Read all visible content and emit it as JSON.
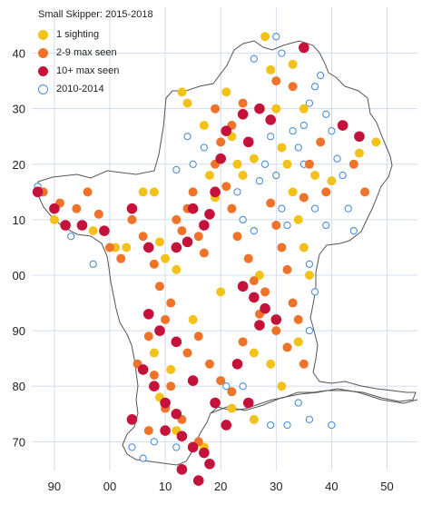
{
  "legend": {
    "title": "Small Skipper:  2015-2018",
    "items": [
      {
        "label": "1 sighting",
        "color": "#f3c21a",
        "style": "filled"
      },
      {
        "label": "2-9 max seen",
        "color": "#f0732a",
        "style": "filled"
      },
      {
        "label": "10+ max seen",
        "color": "#c4123a",
        "style": "filled"
      },
      {
        "label": "2010-2014",
        "color": "#4d8fd6",
        "style": "outline"
      }
    ]
  },
  "axes": {
    "x_ticks": [
      "90",
      "00",
      "10",
      "20",
      "30",
      "40",
      "50"
    ],
    "y_ticks": [
      "40",
      "30",
      "20",
      "10",
      "00",
      "90",
      "80",
      "70"
    ]
  },
  "chart_data": {
    "type": "scatter",
    "title": "Small Skipper:  2015-2018",
    "grid": true,
    "x_ticks": [
      "90",
      "00",
      "10",
      "20",
      "30",
      "40",
      "50"
    ],
    "y_ticks": [
      "40",
      "30",
      "20",
      "10",
      "00",
      "90",
      "80",
      "70"
    ],
    "series": [
      {
        "name": "1 sighting",
        "color": "#f3c21a",
        "points": [
          [
            -10,
            10
          ],
          [
            -3,
            8
          ],
          [
            1,
            5
          ],
          [
            3,
            5
          ],
          [
            6,
            15
          ],
          [
            8,
            15
          ],
          [
            9,
            6
          ],
          [
            10,
            3
          ],
          [
            12,
            1
          ],
          [
            13,
            33
          ],
          [
            14,
            31
          ],
          [
            17,
            27
          ],
          [
            18,
            18
          ],
          [
            19,
            14
          ],
          [
            21,
            33
          ],
          [
            22,
            25
          ],
          [
            23,
            20
          ],
          [
            24,
            18
          ],
          [
            26,
            21
          ],
          [
            28,
            43
          ],
          [
            29,
            37
          ],
          [
            30,
            30
          ],
          [
            31,
            23
          ],
          [
            32,
            20
          ],
          [
            33,
            15
          ],
          [
            34,
            10
          ],
          [
            35,
            5
          ],
          [
            36,
            0
          ],
          [
            33,
            38
          ],
          [
            35,
            30
          ],
          [
            27,
            0
          ],
          [
            20,
            -3
          ],
          [
            15,
            -8
          ],
          [
            11,
            -17
          ],
          [
            8,
            -14
          ],
          [
            9,
            -22
          ],
          [
            12,
            -28
          ],
          [
            17,
            -31
          ],
          [
            22,
            -24
          ],
          [
            26,
            -14
          ],
          [
            29,
            -16
          ],
          [
            31,
            -20
          ],
          [
            34,
            -12
          ],
          [
            37,
            18
          ],
          [
            40,
            17
          ],
          [
            45,
            22
          ],
          [
            48,
            24
          ],
          [
            26,
            -26
          ]
        ]
      },
      {
        "name": "2-9 max seen",
        "color": "#f0732a",
        "points": [
          [
            -12,
            15
          ],
          [
            -9,
            13
          ],
          [
            -6,
            12
          ],
          [
            -4,
            15
          ],
          [
            -2,
            11
          ],
          [
            0,
            5
          ],
          [
            2,
            3
          ],
          [
            4,
            10
          ],
          [
            6,
            7
          ],
          [
            8,
            2
          ],
          [
            9,
            -2
          ],
          [
            11,
            -5
          ],
          [
            12,
            10
          ],
          [
            14,
            12
          ],
          [
            16,
            7
          ],
          [
            17,
            4
          ],
          [
            19,
            30
          ],
          [
            20,
            24
          ],
          [
            21,
            16
          ],
          [
            22,
            12
          ],
          [
            23,
            7
          ],
          [
            25,
            3
          ],
          [
            26,
            -1
          ],
          [
            28,
            -3
          ],
          [
            29,
            13
          ],
          [
            30,
            9
          ],
          [
            31,
            5
          ],
          [
            32,
            1
          ],
          [
            33,
            -5
          ],
          [
            34,
            -8
          ],
          [
            35,
            14
          ],
          [
            36,
            20
          ],
          [
            38,
            24
          ],
          [
            39,
            15
          ],
          [
            33,
            34
          ],
          [
            30,
            35
          ],
          [
            24,
            31
          ],
          [
            22,
            27
          ],
          [
            19,
            20
          ],
          [
            15,
            15
          ],
          [
            13,
            8
          ],
          [
            10,
            -8
          ],
          [
            7,
            -11
          ],
          [
            5,
            -16
          ],
          [
            8,
            -18
          ],
          [
            11,
            -20
          ],
          [
            14,
            -14
          ],
          [
            16,
            -11
          ],
          [
            18,
            -16
          ],
          [
            20,
            -19
          ],
          [
            22,
            -21
          ],
          [
            24,
            -12
          ],
          [
            27,
            -7
          ],
          [
            30,
            -10
          ],
          [
            32,
            -13
          ],
          [
            35,
            -16
          ],
          [
            7,
            -28
          ],
          [
            10,
            -24
          ],
          [
            13,
            -26
          ],
          [
            16,
            -30
          ],
          [
            46,
            15
          ],
          [
            44,
            20
          ]
        ]
      },
      {
        "name": "10+ max seen",
        "color": "#c4123a",
        "points": [
          [
            -13,
            15
          ],
          [
            -10,
            12
          ],
          [
            -8,
            9
          ],
          [
            -5,
            9
          ],
          [
            -1,
            8
          ],
          [
            4,
            12
          ],
          [
            7,
            5
          ],
          [
            12,
            5
          ],
          [
            14,
            6
          ],
          [
            15,
            12
          ],
          [
            17,
            9
          ],
          [
            18,
            11
          ],
          [
            19,
            15
          ],
          [
            20,
            21
          ],
          [
            21,
            26
          ],
          [
            24,
            29
          ],
          [
            25,
            24
          ],
          [
            27,
            30
          ],
          [
            29,
            28
          ],
          [
            35,
            41
          ],
          [
            42,
            27
          ],
          [
            45,
            25
          ],
          [
            24,
            -2
          ],
          [
            26,
            -4
          ],
          [
            28,
            -6
          ],
          [
            30,
            -8
          ],
          [
            27,
            -9
          ],
          [
            7,
            -7
          ],
          [
            9,
            -10
          ],
          [
            12,
            -12
          ],
          [
            6,
            -17
          ],
          [
            8,
            -20
          ],
          [
            10,
            -23
          ],
          [
            12,
            -25
          ],
          [
            15,
            -19
          ],
          [
            19,
            -23
          ],
          [
            21,
            -27
          ],
          [
            23,
            -16
          ],
          [
            25,
            -23
          ],
          [
            4,
            -26
          ],
          [
            10,
            -28
          ],
          [
            13,
            -29
          ],
          [
            15,
            -31
          ],
          [
            17,
            -32
          ],
          [
            13,
            -35
          ],
          [
            16,
            -37
          ],
          [
            18,
            -34
          ]
        ]
      },
      {
        "name": "2010-2014",
        "color": "#4d8fd6",
        "points": [
          [
            -13,
            16
          ],
          [
            -7,
            7
          ],
          [
            -3,
            2
          ],
          [
            12,
            19
          ],
          [
            14,
            25
          ],
          [
            15,
            20
          ],
          [
            17,
            23
          ],
          [
            23,
            15
          ],
          [
            24,
            10
          ],
          [
            26,
            8
          ],
          [
            27,
            17
          ],
          [
            28,
            20
          ],
          [
            29,
            25
          ],
          [
            30,
            18
          ],
          [
            31,
            12
          ],
          [
            32,
            9
          ],
          [
            34,
            23
          ],
          [
            35,
            27
          ],
          [
            36,
            31
          ],
          [
            37,
            34
          ],
          [
            38,
            36
          ],
          [
            39,
            29
          ],
          [
            40,
            26
          ],
          [
            41,
            21
          ],
          [
            42,
            18
          ],
          [
            43,
            12
          ],
          [
            44,
            8
          ],
          [
            39,
            9
          ],
          [
            37,
            12
          ],
          [
            35,
            20
          ],
          [
            33,
            26
          ],
          [
            31,
            40
          ],
          [
            26,
            39
          ],
          [
            30,
            43
          ],
          [
            36,
            2
          ],
          [
            37,
            -3
          ],
          [
            36,
            -10
          ],
          [
            34,
            -23
          ],
          [
            36,
            -26
          ],
          [
            40,
            -27
          ],
          [
            32,
            -27
          ],
          [
            29,
            -27
          ],
          [
            8,
            -30
          ],
          [
            12,
            -31
          ],
          [
            4,
            -31
          ],
          [
            6,
            -33
          ],
          [
            21,
            -20
          ],
          [
            24,
            -20
          ]
        ]
      }
    ]
  }
}
